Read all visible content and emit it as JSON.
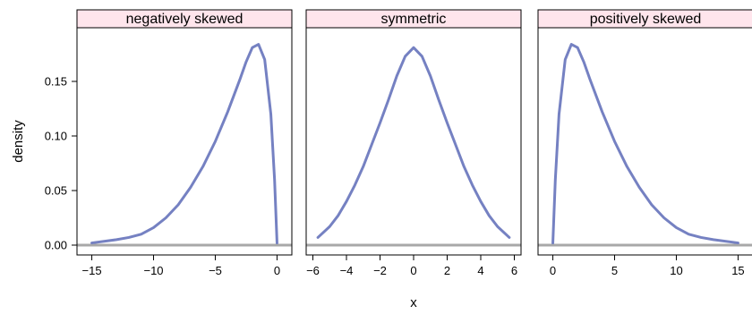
{
  "chart_data": {
    "type": "line",
    "xlabel": "x",
    "ylabel": "density",
    "ylim": [
      0,
      0.19
    ],
    "yticks": [
      0.0,
      0.05,
      0.1,
      0.15
    ],
    "ytick_labels": [
      "0.00",
      "0.05",
      "0.10",
      "0.15"
    ],
    "grid": false,
    "colors": {
      "line": "#7581c2",
      "baseline": "#a8a8a8",
      "strip": "#ffe5ec",
      "frame": "#000000"
    },
    "panels": [
      {
        "title": "negatively skewed",
        "xlim": [
          -16.2,
          1.2
        ],
        "xticks": [
          -15,
          -10,
          -5,
          0
        ],
        "xtick_labels": [
          "−15",
          "−10",
          "−5",
          "0"
        ],
        "x": [
          -15,
          -13,
          -12,
          -11,
          -10,
          -9,
          -8,
          -7,
          -6,
          -5,
          -4,
          -3,
          -2.5,
          -2,
          -1.5,
          -1,
          -0.5,
          -0.2,
          0
        ],
        "y": [
          0.002,
          0.005,
          0.007,
          0.01,
          0.016,
          0.025,
          0.037,
          0.053,
          0.072,
          0.095,
          0.122,
          0.152,
          0.168,
          0.181,
          0.184,
          0.17,
          0.12,
          0.06,
          0.002
        ]
      },
      {
        "title": "symmetric",
        "xlim": [
          -6.4,
          6.4
        ],
        "xticks": [
          -6,
          -4,
          -2,
          0,
          2,
          4,
          6
        ],
        "xtick_labels": [
          "−6",
          "−4",
          "−2",
          "0",
          "2",
          "4",
          "6"
        ],
        "x": [
          -5.7,
          -5,
          -4.5,
          -4,
          -3.5,
          -3,
          -2.5,
          -2,
          -1.5,
          -1,
          -0.5,
          0,
          0.5,
          1,
          1.5,
          2,
          2.5,
          3,
          3.5,
          4,
          4.5,
          5,
          5.7
        ],
        "y": [
          0.007,
          0.017,
          0.027,
          0.04,
          0.055,
          0.072,
          0.092,
          0.112,
          0.133,
          0.155,
          0.173,
          0.181,
          0.173,
          0.155,
          0.133,
          0.112,
          0.092,
          0.072,
          0.055,
          0.04,
          0.027,
          0.017,
          0.007
        ]
      },
      {
        "title": "positively skewed",
        "xlim": [
          -1.2,
          16.2
        ],
        "xticks": [
          0,
          5,
          10,
          15
        ],
        "xtick_labels": [
          "0",
          "5",
          "10",
          "15"
        ],
        "x": [
          0,
          0.2,
          0.5,
          1,
          1.5,
          2,
          2.5,
          3,
          4,
          5,
          6,
          7,
          8,
          9,
          10,
          11,
          12,
          13,
          15
        ],
        "y": [
          0.002,
          0.06,
          0.12,
          0.17,
          0.184,
          0.181,
          0.168,
          0.152,
          0.122,
          0.095,
          0.072,
          0.053,
          0.037,
          0.025,
          0.016,
          0.01,
          0.007,
          0.005,
          0.002
        ]
      }
    ]
  }
}
